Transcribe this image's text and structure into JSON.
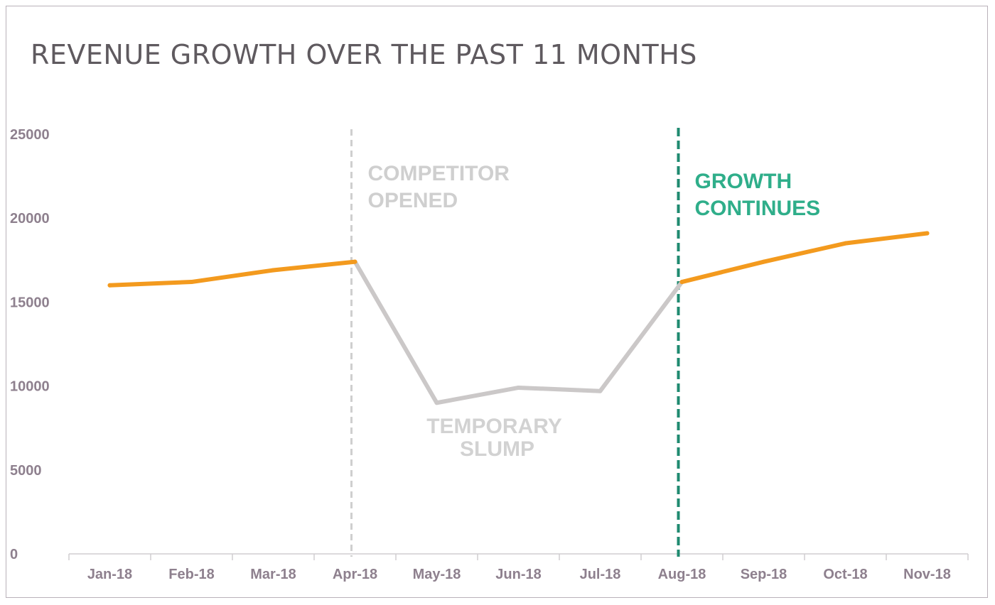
{
  "chart_data": {
    "type": "line",
    "title": "REVENUE GROWTH OVER THE PAST 11 MONTHS",
    "xlabel": "",
    "ylabel": "",
    "categories": [
      "Jan-18",
      "Feb-18",
      "Mar-18",
      "Apr-18",
      "May-18",
      "Jun-18",
      "Jul-18",
      "Aug-18",
      "Sep-18",
      "Oct-18",
      "Nov-18"
    ],
    "values": [
      16000,
      16200,
      16900,
      17400,
      9000,
      9900,
      9700,
      16200,
      17400,
      18500,
      19100
    ],
    "ylim": [
      0,
      25000
    ],
    "yticks": [
      0,
      5000,
      10000,
      15000,
      20000,
      25000
    ],
    "grid": false,
    "segment_colors": {
      "growth": "#f39a1e",
      "slump": "#cbc8c8"
    },
    "annotations": [
      {
        "category": "Apr-18",
        "lines": [
          "COMPETITOR",
          "OPENED"
        ],
        "color": "#cfcfcf",
        "style": "dashed-vertical"
      },
      {
        "category": "Aug-18",
        "lines": [
          "GROWTH",
          "CONTINUES"
        ],
        "color": "#2fae8a",
        "style": "dashed-vertical"
      },
      {
        "category": "Jun-18",
        "lines": [
          "TEMPORARY",
          "SLUMP"
        ],
        "color": "#d2d2d2",
        "style": "label"
      }
    ]
  }
}
